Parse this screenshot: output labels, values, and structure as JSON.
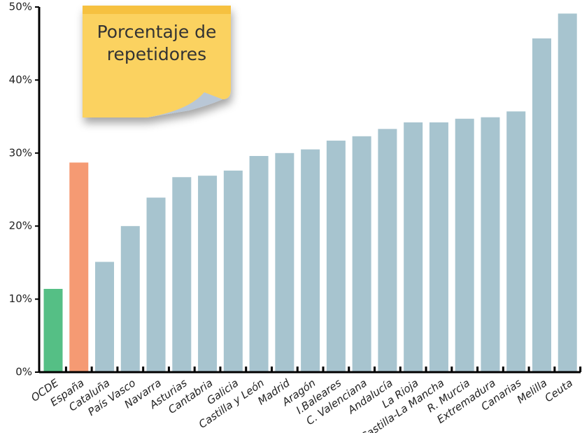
{
  "chart_data": {
    "type": "bar",
    "title": "Porcentaje de repetidores",
    "categories": [
      "OCDE",
      "España",
      "Cataluña",
      "País Vasco",
      "Navarra",
      "Asturias",
      "Cantabria",
      "Galicia",
      "Castilla y León",
      "Madrid",
      "Aragón",
      "I.Baleares",
      "C. Valenciana",
      "Andalucía",
      "La Rioja",
      "Castilla-La Mancha",
      "R. Murcia",
      "Extremadura",
      "Canarias",
      "Melilla",
      "Ceuta"
    ],
    "values": [
      11.4,
      28.7,
      15.1,
      20.0,
      23.9,
      26.7,
      26.9,
      27.6,
      29.6,
      30.0,
      30.5,
      31.7,
      32.3,
      33.3,
      34.2,
      34.2,
      34.7,
      34.9,
      35.7,
      45.7,
      49.1
    ],
    "colors": [
      "#55bf85",
      "#f59a73",
      "#a7c4cf",
      "#a7c4cf",
      "#a7c4cf",
      "#a7c4cf",
      "#a7c4cf",
      "#a7c4cf",
      "#a7c4cf",
      "#a7c4cf",
      "#a7c4cf",
      "#a7c4cf",
      "#a7c4cf",
      "#a7c4cf",
      "#a7c4cf",
      "#a7c4cf",
      "#a7c4cf",
      "#a7c4cf",
      "#a7c4cf",
      "#a7c4cf",
      "#a7c4cf"
    ],
    "ylim": [
      0,
      50
    ],
    "yticks": [
      {
        "value": 0,
        "label": "0%"
      },
      {
        "value": 10,
        "label": "10%"
      },
      {
        "value": 20,
        "label": "20%"
      },
      {
        "value": 30,
        "label": "30%"
      },
      {
        "value": 40,
        "label": "40%"
      },
      {
        "value": 50,
        "label": "50%"
      }
    ],
    "grid": false
  }
}
